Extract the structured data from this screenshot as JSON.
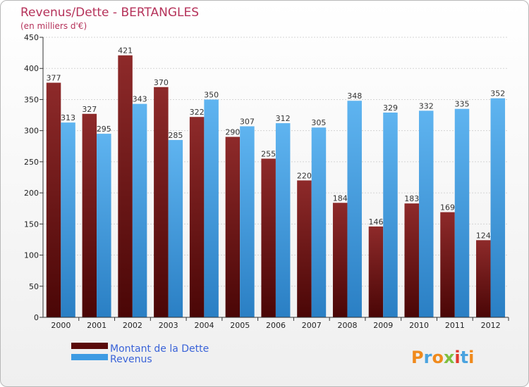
{
  "colors": {
    "debt": "#7a1a1a",
    "revenue": "#3d9be3",
    "title": "#b5325a",
    "legend_text": "#3a63d8"
  },
  "chart_data": {
    "type": "bar",
    "title": "Revenus/Dette - BERTANGLES",
    "subtitle": "(en milliers d'€)",
    "categories": [
      "2000",
      "2001",
      "2002",
      "2003",
      "2004",
      "2005",
      "2006",
      "2007",
      "2008",
      "2009",
      "2010",
      "2011",
      "2012"
    ],
    "series": [
      {
        "name": "Montant de la Dette",
        "values": [
          377,
          327,
          421,
          370,
          322,
          290,
          255,
          220,
          184,
          146,
          183,
          169,
          124
        ]
      },
      {
        "name": "Revenus",
        "values": [
          313,
          295,
          343,
          285,
          350,
          307,
          312,
          305,
          348,
          329,
          332,
          335,
          352
        ]
      }
    ],
    "ylim": [
      0,
      450
    ],
    "yticks": [
      0,
      50,
      100,
      150,
      200,
      250,
      300,
      350,
      400,
      450
    ],
    "grid": true,
    "legend": "bottom-left"
  },
  "logo": {
    "letters": [
      "P",
      "r",
      "o",
      "x",
      "i",
      "t",
      "i"
    ],
    "colors": [
      "#f08a1c",
      "#4aa3df",
      "#f08a1c",
      "#7fbf3f",
      "#e2392b",
      "#4aa3df",
      "#f08a1c"
    ]
  }
}
